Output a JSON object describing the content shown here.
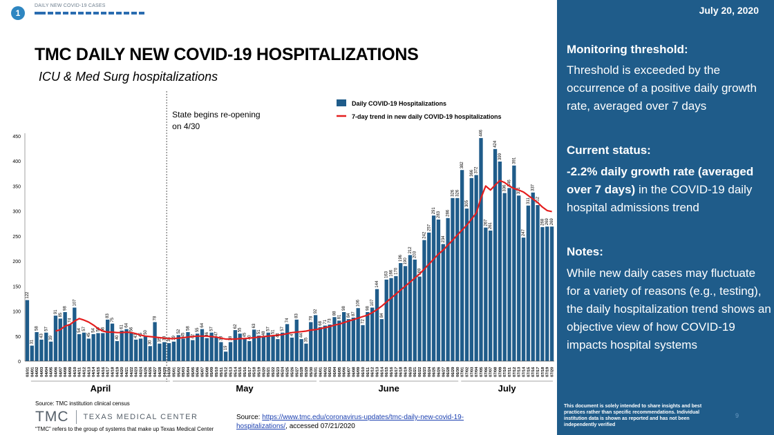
{
  "header": {
    "badge": "1",
    "label": "DAILY NEW COVID-19 CASES",
    "progress_segments": 14
  },
  "title": "TMC DAILY NEW COVID-19 HOSPITALIZATIONS",
  "subtitle": "ICU & Med Surg hospitalizations",
  "annotation": "State begins re-opening on 4/30",
  "chart_data": {
    "type": "bar",
    "title": "TMC DAILY NEW COVID-19 HOSPITALIZATIONS",
    "subtitle": "ICU & Med Surg hospitalizations",
    "xlabel": "",
    "ylabel": "",
    "ylim": [
      0,
      450
    ],
    "yticks": [
      0,
      50,
      100,
      150,
      200,
      250,
      300,
      350,
      400,
      450
    ],
    "grid": false,
    "legend_position": "top-right",
    "month_labels": [
      "April",
      "May",
      "June",
      "July"
    ],
    "categories": [
      "03/31",
      "04/01",
      "04/02",
      "04/03",
      "04/04",
      "04/05",
      "04/06",
      "04/07",
      "04/08",
      "04/09",
      "04/10",
      "04/11",
      "04/12",
      "04/13",
      "04/14",
      "04/15",
      "04/16",
      "04/17",
      "04/18",
      "04/19",
      "04/20",
      "04/21",
      "04/22",
      "04/23",
      "04/24",
      "04/25",
      "04/26",
      "04/27",
      "04/28",
      "04/29",
      "04/30",
      "05/01",
      "05/02",
      "05/03",
      "05/04",
      "05/05",
      "05/06",
      "05/07",
      "05/08",
      "05/09",
      "05/10",
      "05/11",
      "05/12",
      "05/13",
      "05/14",
      "05/15",
      "05/16",
      "05/17",
      "05/18",
      "05/19",
      "05/20",
      "05/21",
      "05/22",
      "05/23",
      "05/24",
      "05/25",
      "05/26",
      "05/27",
      "05/28",
      "05/29",
      "05/30",
      "05/31",
      "06/01",
      "06/02",
      "06/03",
      "06/04",
      "06/05",
      "06/06",
      "06/07",
      "06/08",
      "06/09",
      "06/10",
      "06/11",
      "06/12",
      "06/13",
      "06/14",
      "06/15",
      "06/16",
      "06/17",
      "06/18",
      "06/19",
      "06/20",
      "06/21",
      "06/22",
      "06/23",
      "06/24",
      "06/25",
      "06/26",
      "06/27",
      "06/28",
      "06/29",
      "06/30",
      "07/01",
      "07/02",
      "07/03",
      "07/04",
      "07/05",
      "07/06",
      "07/07",
      "07/08",
      "07/09",
      "07/10",
      "07/11",
      "07/12",
      "07/13",
      "07/14",
      "07/15",
      "07/16",
      "07/17",
      "07/18",
      "07/19",
      "07/20"
    ],
    "series": [
      {
        "name": "Daily COVID-19 Hospitalizations",
        "type": "bar",
        "color": "#1f5c8a",
        "values": [
          122,
          31,
          58,
          43,
          57,
          39,
          91,
          85,
          98,
          74,
          107,
          54,
          57,
          45,
          54,
          56,
          56,
          83,
          75,
          40,
          61,
          64,
          56,
          43,
          45,
          50,
          30,
          78,
          35,
          38,
          36,
          39,
          52,
          45,
          58,
          42,
          55,
          64,
          46,
          57,
          47,
          38,
          19,
          38,
          62,
          55,
          45,
          40,
          63,
          51,
          48,
          57,
          51,
          44,
          57,
          74,
          47,
          83,
          44,
          35,
          78,
          92,
          68,
          71,
          73,
          88,
          81,
          98,
          84,
          87,
          106,
          72,
          98,
          107,
          144,
          84,
          163,
          166,
          170,
          196,
          190,
          212,
          203,
          169,
          242,
          257,
          291,
          283,
          234,
          286,
          326,
          326,
          382,
          305,
          366,
          372,
          446,
          267,
          261,
          424,
          399,
          336,
          346,
          391,
          331,
          247,
          311,
          337,
          312,
          268,
          269,
          269
        ]
      },
      {
        "name": "7-day trend in new daily COVID-19 hospitalizations",
        "type": "line",
        "color": "#e41e1e",
        "values": [
          null,
          null,
          null,
          null,
          null,
          null,
          60,
          63,
          70,
          73,
          80,
          85,
          82,
          78,
          72,
          65,
          60,
          58,
          58,
          57,
          57,
          58,
          57,
          55,
          52,
          50,
          49,
          48,
          47,
          46,
          45,
          45,
          46,
          47,
          48,
          49,
          50,
          50,
          50,
          49,
          48,
          46,
          44,
          44,
          44,
          45,
          45,
          46,
          47,
          48,
          49,
          50,
          51,
          52,
          53,
          55,
          57,
          58,
          59,
          60,
          62,
          63,
          65,
          67,
          69,
          72,
          74,
          77,
          80,
          83,
          86,
          89,
          92,
          97,
          103,
          110,
          118,
          126,
          134,
          142,
          150,
          158,
          166,
          174,
          184,
          194,
          204,
          214,
          222,
          232,
          242,
          252,
          262,
          272,
          284,
          296,
          326,
          350,
          342,
          352,
          361,
          357,
          350,
          345,
          342,
          338,
          331,
          324,
          317,
          308,
          301,
          299
        ]
      }
    ]
  },
  "source": "Source: TMC institution clinical census",
  "logo": {
    "mark": "TMC",
    "name": "TEXAS MEDICAL CENTER"
  },
  "tmc_note": "“TMC” refers to the group of systems that make up Texas Medical Center",
  "source_link": {
    "prefix": "Source: ",
    "url_text": "https://www.tmc.edu/coronavirus-updates/tmc-daily-new-covid-19-hospitalizations/",
    "suffix": ", accessed 07/21/2020"
  },
  "panel": {
    "date": "July 20, 2020",
    "monitoring_heading": "Monitoring threshold:",
    "monitoring_text": "Threshold is exceeded by the occurrence of a positive daily growth rate, averaged over 7 days",
    "status_heading": "Current status:",
    "status_bold": "-2.2% daily growth rate (averaged over 7 days)",
    "status_text": " in the COVID-19 daily hospital admissions trend",
    "notes_heading": "Notes:",
    "notes_text": "While new daily cases may fluctuate for a variety of reasons (e.g., testing), the daily hospitalization trend shows an objective view of how COVID-19 impacts hospital systems",
    "disclaimer": "This document is solely intended to share insights and best practices rather than specific recommendations. Individual institution data is shown as reported and has not been independently verified",
    "page_number": "9"
  }
}
